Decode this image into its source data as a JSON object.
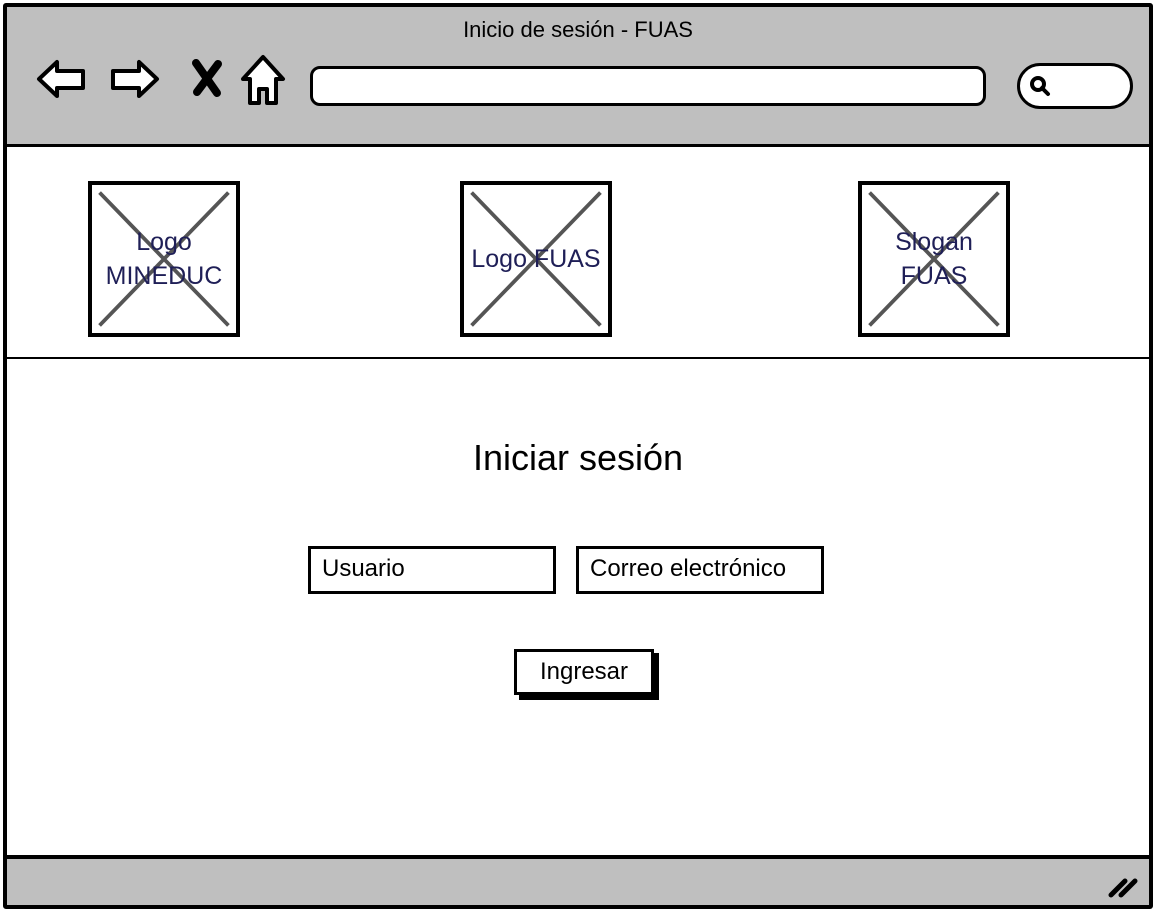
{
  "window": {
    "title": "Inicio de sesión - FUAS"
  },
  "toolbar": {
    "icons": [
      "back-arrow-icon",
      "forward-arrow-icon",
      "stop-icon",
      "home-icon",
      "search-icon"
    ],
    "address_value": "",
    "search_value": ""
  },
  "header": {
    "images": [
      {
        "label": "Logo\nMINEDUC"
      },
      {
        "label": "Logo FUAS"
      },
      {
        "label": "Slogan\nFUAS"
      }
    ]
  },
  "login": {
    "title": "Iniciar sesión",
    "user_field": "Usuario",
    "email_field": "Correo electrónico",
    "submit_label": "Ingresar"
  },
  "colors": {
    "chrome": "#bfbfbf",
    "border": "#000000",
    "placeholder_cross": "#555555",
    "placeholder_text": "#1f1f57"
  }
}
